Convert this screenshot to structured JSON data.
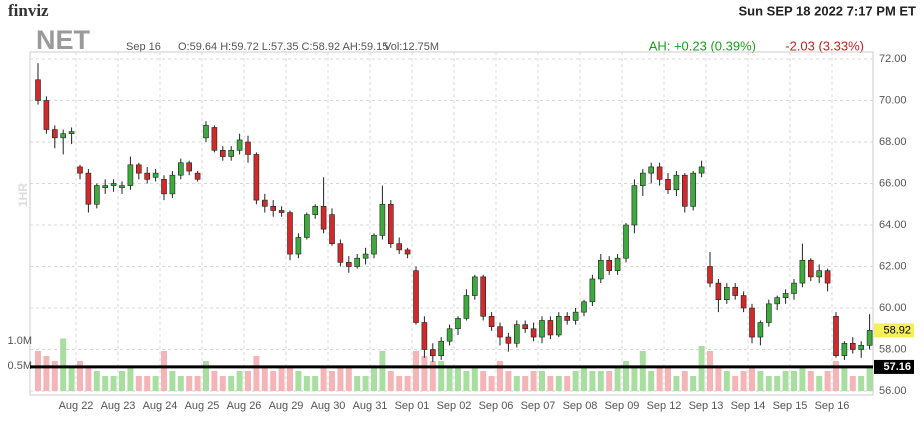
{
  "header": {
    "brand": "finviz",
    "datetime": "Sun SEP 18 2022 7:17 PM ET"
  },
  "chart_data": {
    "type": "candlestick",
    "ticker": "NET",
    "timeframe": "1HR",
    "date": "Sep 16",
    "ohlc_text": "O:59.64 H:59.72 L:57.35 C:58.92 AH:59.15",
    "volume_text": "Vol:12.75M",
    "after_hours": "AH: +0.23 (0.39%)",
    "change": "-2.03 (3.33%)",
    "up_color": "#3daa3d",
    "down_color": "#d12a2a",
    "up_volume_color": "#a9dea1",
    "down_volume_color": "#f5b5b8",
    "categories": [
      null,
      "Aug 22",
      "Aug 23",
      "Aug 24",
      "Aug 25",
      "Aug 26",
      "Aug 29",
      "Aug 30",
      "Aug 31",
      "Sep 01",
      "Sep 02",
      "Sep 06",
      "Sep 07",
      "Sep 08",
      "Sep 09",
      "Sep 12",
      "Sep 13",
      "Sep 14",
      "Sep 15",
      "Sep 16"
    ],
    "candles": [
      [
        71.0,
        71.8,
        69.8,
        70.0,
        0.8
      ],
      [
        70,
        70.2,
        68.4,
        68.6,
        0.7
      ],
      [
        68.6,
        68.8,
        67.7,
        68.2,
        0.6
      ],
      [
        68.2,
        68.6,
        67.4,
        68.4,
        1.05
      ],
      [
        68.4,
        68.7,
        67.9,
        68.5,
        0.5
      ],
      [
        66.8,
        66.9,
        66.2,
        66.5,
        0.6
      ],
      [
        66.5,
        66.7,
        64.6,
        65.0,
        0.5
      ],
      [
        65,
        66,
        64.8,
        65.9,
        0.4
      ],
      [
        65.8,
        66.2,
        65.5,
        65.9,
        0.3
      ],
      [
        65.9,
        66.2,
        65.6,
        66.0,
        0.3
      ],
      [
        65.8,
        66.1,
        65.5,
        65.9,
        0.4
      ],
      [
        65.9,
        67.3,
        65.7,
        66.9,
        0.5
      ],
      [
        66.9,
        67,
        66.2,
        66.5,
        0.3
      ],
      [
        66.5,
        66.8,
        66,
        66.2,
        0.3
      ],
      [
        66.3,
        66.7,
        66.1,
        66.5,
        0.3
      ],
      [
        66.2,
        66.4,
        65.2,
        65.5,
        0.8
      ],
      [
        65.5,
        66.6,
        65.3,
        66.4,
        0.4
      ],
      [
        66.4,
        67.2,
        66.2,
        67.0,
        0.3
      ],
      [
        67,
        67.1,
        66.4,
        66.6,
        0.3
      ],
      [
        66.5,
        66.6,
        66.1,
        66.2,
        0.3
      ],
      [
        68.2,
        69.0,
        68.0,
        68.8,
        0.6
      ],
      [
        68.7,
        68.8,
        67.5,
        67.6,
        0.4
      ],
      [
        67.6,
        67.8,
        67.1,
        67.3,
        0.3
      ],
      [
        67.3,
        67.8,
        67.1,
        67.6,
        0.3
      ],
      [
        67.6,
        68.4,
        67.4,
        68.1,
        0.4
      ],
      [
        68,
        68.3,
        67,
        67.4,
        0.4
      ],
      [
        67.4,
        67.5,
        65,
        65.2,
        0.7
      ],
      [
        65.2,
        65.5,
        64.6,
        64.9,
        0.5
      ],
      [
        64.9,
        65.2,
        64.4,
        64.7,
        0.4
      ],
      [
        64.7,
        64.9,
        64.4,
        64.6,
        0.5
      ],
      [
        64.6,
        64.7,
        62.3,
        62.6,
        0.5
      ],
      [
        62.6,
        63.6,
        62.4,
        63.4,
        0.4
      ],
      [
        63.4,
        64.6,
        63.3,
        64.5,
        0.3
      ],
      [
        64.5,
        65,
        64.3,
        64.9,
        0.3
      ],
      [
        64.9,
        66.3,
        63.6,
        63.8,
        0.5
      ],
      [
        64.5,
        64.8,
        63.0,
        63.1,
        0.4
      ],
      [
        63.1,
        63.3,
        62.0,
        62.2,
        0.5
      ],
      [
        62.2,
        62.5,
        61.7,
        62.0,
        0.5
      ],
      [
        62.0,
        62.6,
        61.9,
        62.4,
        0.3
      ],
      [
        62.4,
        62.9,
        62.1,
        62.6,
        0.3
      ],
      [
        62.6,
        63.6,
        62.4,
        63.5,
        0.5
      ],
      [
        63.5,
        65.9,
        63.3,
        65.0,
        0.8
      ],
      [
        65.0,
        65.2,
        62.9,
        63.1,
        0.4
      ],
      [
        63.1,
        63.4,
        62.6,
        62.8,
        0.3
      ],
      [
        62.8,
        62.9,
        62.4,
        62.6,
        0.3
      ],
      [
        61.8,
        62.0,
        59.2,
        59.3,
        0.8
      ],
      [
        59.3,
        59.6,
        57.6,
        58.0,
        0.7
      ],
      [
        58,
        58.3,
        57.4,
        57.7,
        0.6
      ],
      [
        57.7,
        58.6,
        57.5,
        58.4,
        0.6
      ],
      [
        58.4,
        59.2,
        58.2,
        59.0,
        0.5
      ],
      [
        59.0,
        59.6,
        58.7,
        59.5,
        0.5
      ],
      [
        59.5,
        60.9,
        59.4,
        60.6,
        0.4
      ],
      [
        60.6,
        61.6,
        60.4,
        61.5,
        0.5
      ],
      [
        61.5,
        61.6,
        59.4,
        59.6,
        0.4
      ],
      [
        59.6,
        59.8,
        58.9,
        59.1,
        0.3
      ],
      [
        59.1,
        59.3,
        58.2,
        58.6,
        0.6
      ],
      [
        58.6,
        58.8,
        57.9,
        58.3,
        0.4
      ],
      [
        58.3,
        59.4,
        58.1,
        59.2,
        0.3
      ],
      [
        59.2,
        59.4,
        58.8,
        59.0,
        0.3
      ],
      [
        59.0,
        59.3,
        58.4,
        58.6,
        0.4
      ],
      [
        58.6,
        59.6,
        58.3,
        59.4,
        0.4
      ],
      [
        59.4,
        59.6,
        58.5,
        58.7,
        0.3
      ],
      [
        58.7,
        59.8,
        58.6,
        59.6,
        0.3
      ],
      [
        59.6,
        59.8,
        59.2,
        59.4,
        0.3
      ],
      [
        59.4,
        60.0,
        59.2,
        59.8,
        0.4
      ],
      [
        59.8,
        60.4,
        59.6,
        60.3,
        0.5
      ],
      [
        60.3,
        61.6,
        60.1,
        61.4,
        0.4
      ],
      [
        61.4,
        62.6,
        61.2,
        62.3,
        0.4
      ],
      [
        62.3,
        62.5,
        61.6,
        61.8,
        0.4
      ],
      [
        61.8,
        62.6,
        61.6,
        62.4,
        0.5
      ],
      [
        62.4,
        64.1,
        62.2,
        64.0,
        0.6
      ],
      [
        64,
        66.2,
        63.6,
        65.9,
        0.5
      ],
      [
        65.9,
        66.7,
        65.4,
        66.5,
        0.8
      ],
      [
        66.5,
        67.0,
        66.0,
        66.8,
        0.4
      ],
      [
        66.8,
        67.0,
        65.9,
        66.2,
        0.5
      ],
      [
        66.2,
        66.5,
        65.5,
        65.7,
        0.5
      ],
      [
        65.7,
        66.6,
        65.4,
        66.4,
        0.3
      ],
      [
        66.4,
        66.5,
        64.6,
        64.9,
        0.4
      ],
      [
        64.9,
        66.6,
        64.7,
        66.5,
        0.3
      ],
      [
        66.5,
        67.1,
        66.3,
        66.8,
        0.9
      ],
      [
        62.0,
        62.7,
        61.0,
        61.2,
        0.8
      ],
      [
        61.2,
        61.4,
        59.8,
        60.4,
        0.5
      ],
      [
        60.4,
        61.2,
        60.2,
        61.0,
        0.4
      ],
      [
        61,
        61.2,
        60.4,
        60.6,
        0.3
      ],
      [
        60.6,
        60.8,
        59.8,
        60.0,
        0.4
      ],
      [
        60,
        60.2,
        58.3,
        58.6,
        0.5
      ],
      [
        58.6,
        59.4,
        58.2,
        59.3,
        0.4
      ],
      [
        59.3,
        60.4,
        59.1,
        60.2,
        0.3
      ],
      [
        60.2,
        60.6,
        59.9,
        60.5,
        0.3
      ],
      [
        60.5,
        60.9,
        60.2,
        60.7,
        0.4
      ],
      [
        60.7,
        61.4,
        60.4,
        61.2,
        0.4
      ],
      [
        61.2,
        63.1,
        61.0,
        62.3,
        0.5
      ],
      [
        62.3,
        62.4,
        61.3,
        61.5,
        0.4
      ],
      [
        61.5,
        62.1,
        61.2,
        61.8,
        0.3
      ],
      [
        61.8,
        61.9,
        60.8,
        61.2,
        0.4
      ],
      [
        59.6,
        59.8,
        57.6,
        57.7,
        0.6
      ],
      [
        57.7,
        58.4,
        57.5,
        58.3,
        0.5
      ],
      [
        58.3,
        58.6,
        57.8,
        58.0,
        0.3
      ],
      [
        58.0,
        58.4,
        57.6,
        58.2,
        0.3
      ],
      [
        58.2,
        59.7,
        58.0,
        58.92,
        0.5
      ]
    ],
    "ylim": [
      56,
      72.3
    ],
    "yticks": [
      {
        "value": 56,
        "label": "56.00"
      },
      {
        "value": 58,
        "label": "58.00"
      },
      {
        "value": 60,
        "label": "60.00"
      },
      {
        "value": 62,
        "label": "62.00"
      },
      {
        "value": 64,
        "label": "64.00"
      },
      {
        "value": 66,
        "label": "66.00"
      },
      {
        "value": 68,
        "label": "68.00"
      },
      {
        "value": 70,
        "label": "70.00"
      },
      {
        "value": 72,
        "label": "72.00"
      }
    ],
    "vlim": [
      0,
      1.0
    ],
    "vticks": [
      {
        "value": 0.5,
        "label": "0.5M"
      },
      {
        "value": 1.0,
        "label": "1.0M"
      }
    ],
    "last_price": 58.92,
    "level_line": 57.16,
    "grid": true
  }
}
